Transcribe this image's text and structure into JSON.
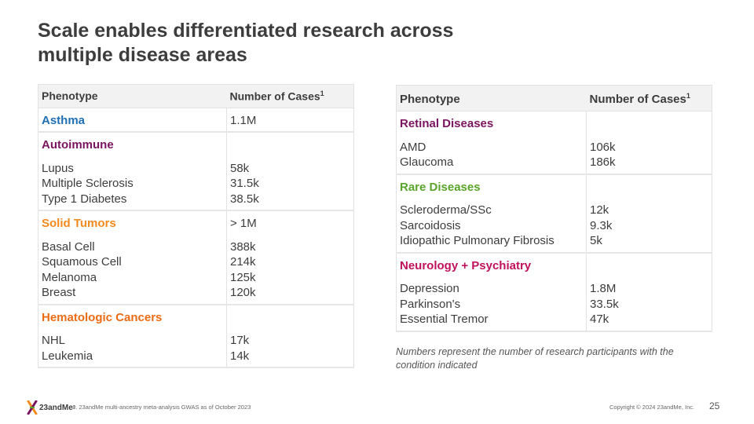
{
  "title_lines": [
    "Scale enables differentiated research across",
    "multiple disease areas"
  ],
  "colors": {
    "blue": "#1f6fb2",
    "purple": "#7a1460",
    "orange": "#f28a1e",
    "dark_orange": "#ea6b15",
    "green": "#5aa52b",
    "magenta": "#c0125c"
  },
  "left_table": {
    "header": {
      "phenotype": "Phenotype",
      "cases": "Number of Cases",
      "sup": "1"
    },
    "groups": [
      {
        "category": "Asthma",
        "category_value": "1.1M",
        "color": "#1f6fb2",
        "items": []
      },
      {
        "category": "Autoimmune",
        "category_value": "",
        "color": "#7a1460",
        "items": [
          {
            "name": "Lupus",
            "value": "58k"
          },
          {
            "name": "Multiple Sclerosis",
            "value": "31.5k"
          },
          {
            "name": "Type 1 Diabetes",
            "value": "38.5k"
          }
        ]
      },
      {
        "category": "Solid Tumors",
        "category_value": "> 1M",
        "color": "#f28a1e",
        "items": [
          {
            "name": "Basal Cell",
            "value": "388k"
          },
          {
            "name": "Squamous Cell",
            "value": "214k"
          },
          {
            "name": "Melanoma",
            "value": "125k"
          },
          {
            "name": "Breast",
            "value": "120k"
          }
        ]
      },
      {
        "category": "Hematologic Cancers",
        "category_value": "",
        "color": "#ea6b15",
        "items": [
          {
            "name": "NHL",
            "value": "17k"
          },
          {
            "name": "Leukemia",
            "value": "14k"
          }
        ]
      }
    ]
  },
  "right_table": {
    "header": {
      "phenotype": "Phenotype",
      "cases": "Number of Cases",
      "sup": "1"
    },
    "groups": [
      {
        "category": "Retinal Diseases",
        "color": "#7a1460",
        "items": [
          {
            "name": "AMD",
            "value": "106k"
          },
          {
            "name": "Glaucoma",
            "value": "186k"
          }
        ]
      },
      {
        "category": "Rare Diseases",
        "color": "#5aa52b",
        "items": [
          {
            "name": "Scleroderma/SSc",
            "value": "12k"
          },
          {
            "name": "Sarcoidosis",
            "value": "9.3k"
          },
          {
            "name": "Idiopathic Pulmonary Fibrosis",
            "value": "5k"
          }
        ]
      },
      {
        "category": "Neurology + Psychiatry",
        "color": "#c0125c",
        "items": [
          {
            "name": "Depression",
            "value": "1.8M"
          },
          {
            "name": "Parkinson's",
            "value": "33.5k"
          },
          {
            "name": "Essential Tremor",
            "value": "47k"
          }
        ]
      }
    ]
  },
  "note": "Numbers represent the number of research participants with the condition indicated",
  "footer": {
    "logo_text": "23andMe",
    "logo_reg": "®",
    "footnote": "1. 23andMe multi-ancestry meta-analysis GWAS as of October 2023",
    "copyright": "Copyright © 2024 23andMe, Inc.",
    "page_number": "25"
  }
}
